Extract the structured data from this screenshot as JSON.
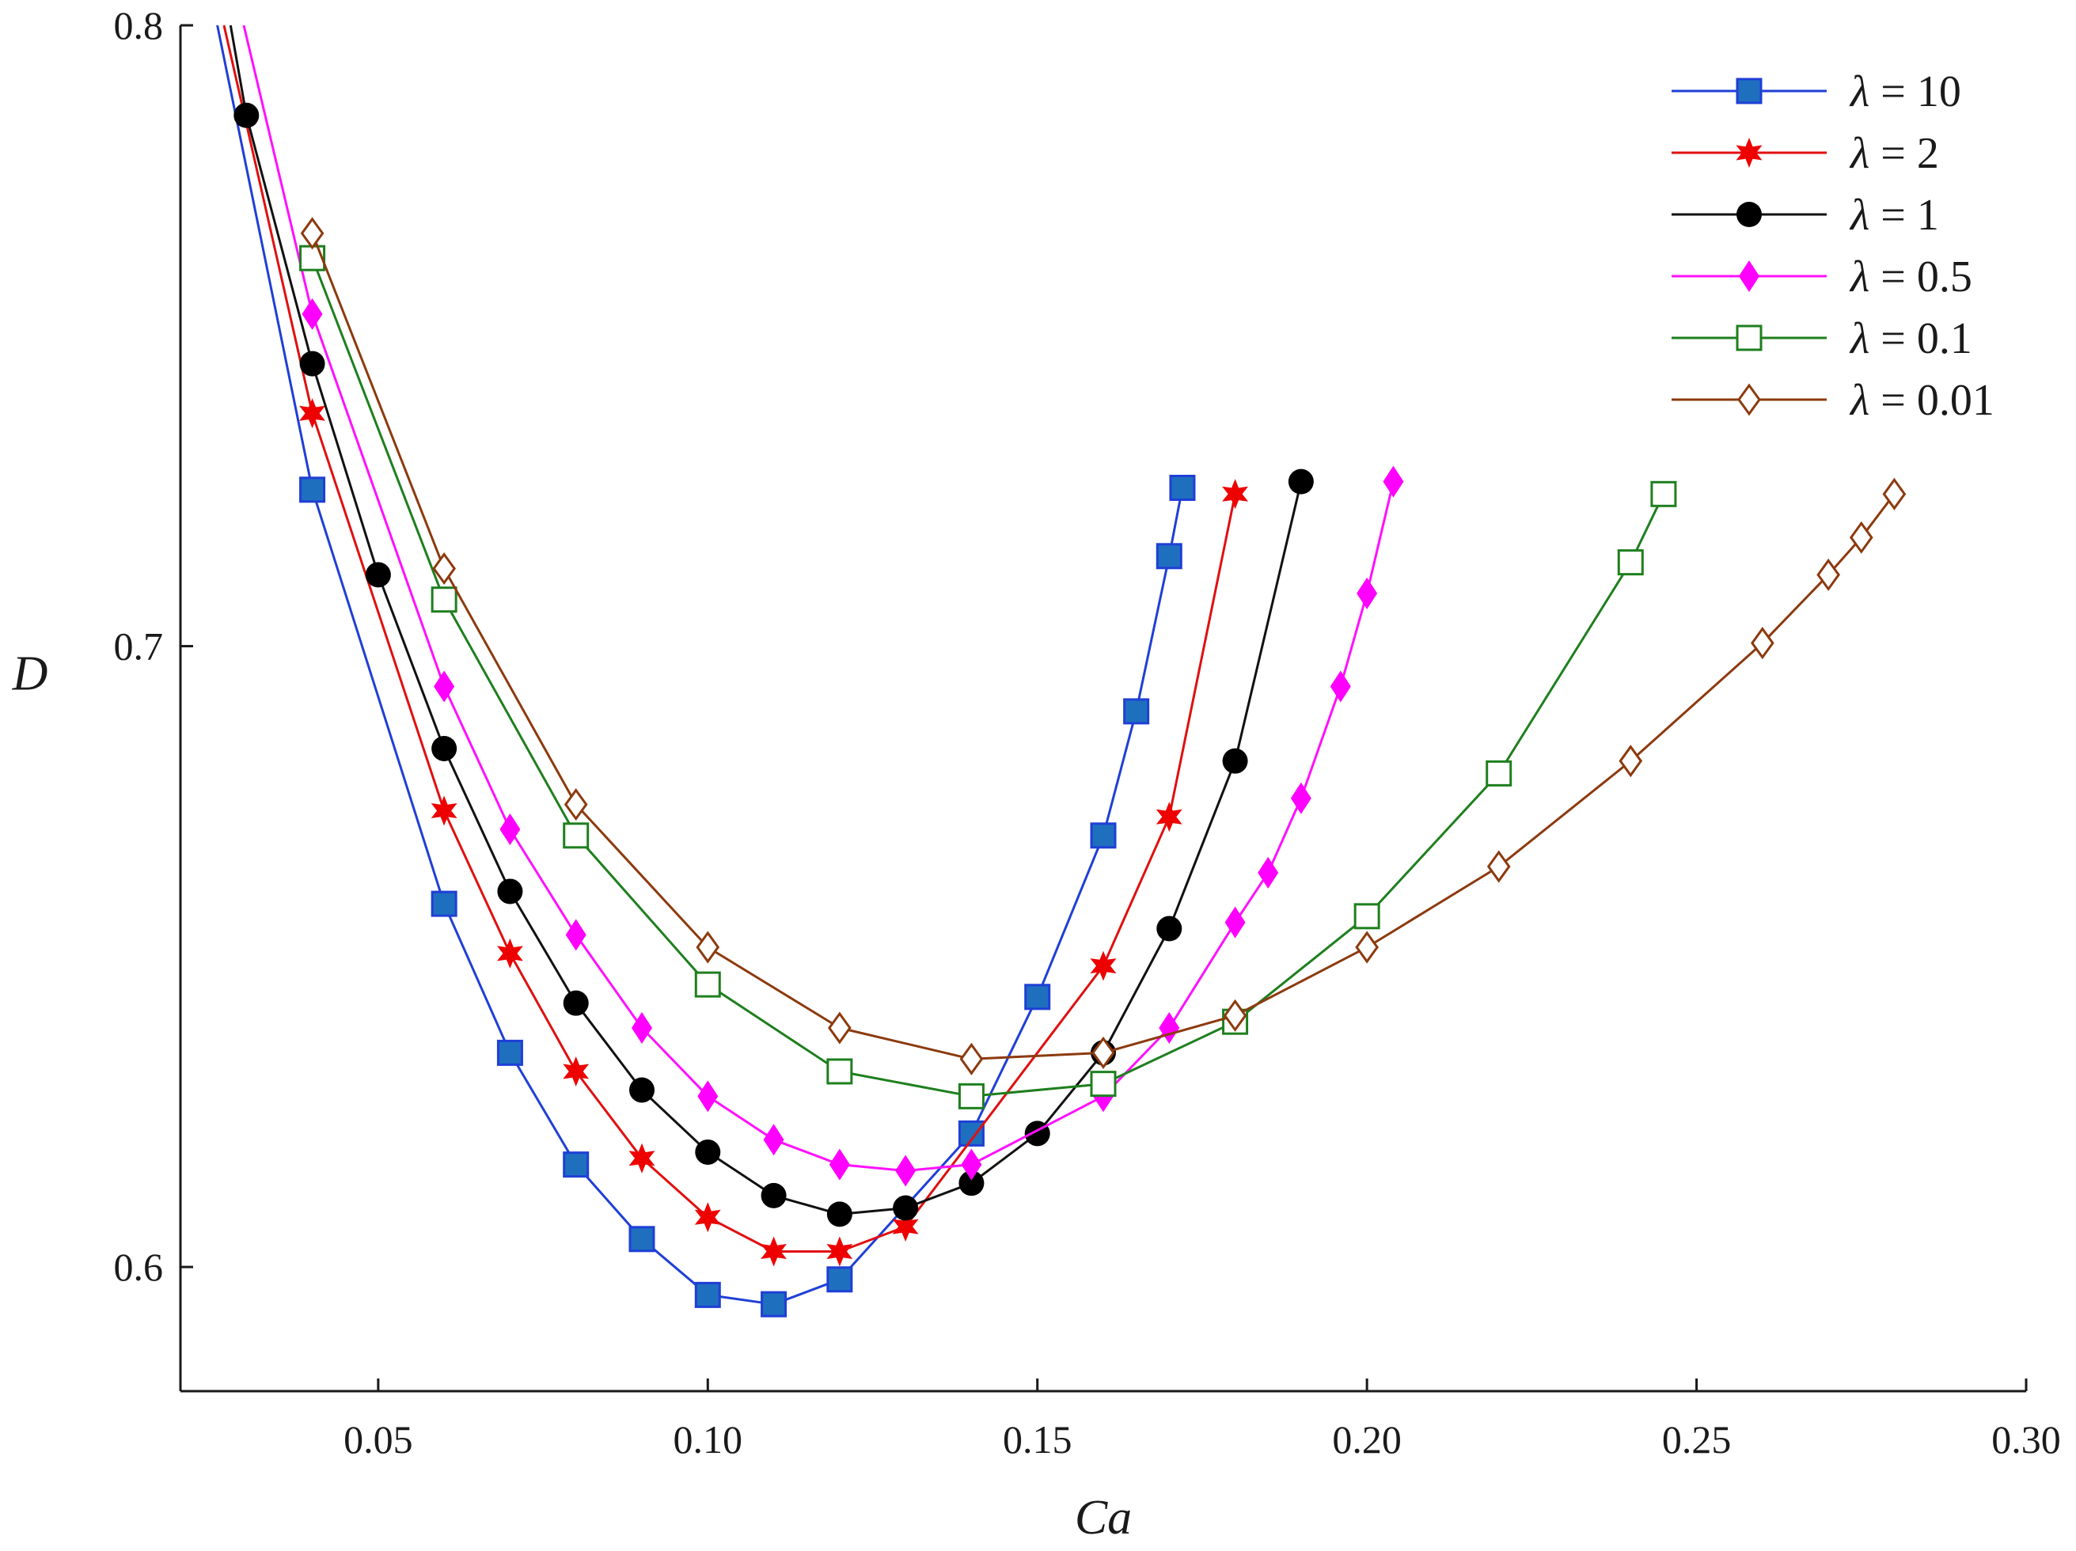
{
  "chart_data": {
    "type": "line",
    "xlabel": "Ca",
    "ylabel": "D",
    "xlim": [
      0.02,
      0.3
    ],
    "ylim": [
      0.58,
      0.8
    ],
    "xticks": [
      "0.05",
      "0.10",
      "0.15",
      "0.20",
      "0.25",
      "0.30"
    ],
    "yticks": [
      "0.6",
      "0.7",
      "0.8"
    ],
    "xtick_values": [
      0.05,
      0.1,
      0.15,
      0.2,
      0.25,
      0.3
    ],
    "ytick_values": [
      0.6,
      0.7,
      0.8
    ],
    "grid": false,
    "legend_position": "top-right",
    "series": [
      {
        "name": "λ = 10",
        "symbol": "λ",
        "value_text": "10",
        "color": "#1f3fd6",
        "marker": "square-filled",
        "marker_color": "#1f6fbf",
        "lead": [
          0.0256,
          0.8
        ],
        "x": [
          0.04,
          0.06,
          0.07,
          0.08,
          0.09,
          0.1,
          0.11,
          0.12,
          0.14,
          0.15,
          0.16,
          0.165,
          0.17,
          0.172
        ],
        "y": [
          0.7252,
          0.6585,
          0.6345,
          0.6165,
          0.6045,
          0.5955,
          0.594,
          0.598,
          0.6215,
          0.6435,
          0.6695,
          0.6895,
          0.7145,
          0.7255
        ]
      },
      {
        "name": "λ = 2",
        "symbol": "λ",
        "value_text": "2",
        "color": "#e01010",
        "marker": "star-filled",
        "marker_color": "#ee0000",
        "lead": [
          0.0266,
          0.8
        ],
        "x": [
          0.04,
          0.06,
          0.07,
          0.08,
          0.09,
          0.1,
          0.11,
          0.12,
          0.13,
          0.16,
          0.17,
          0.18
        ],
        "y": [
          0.7375,
          0.6735,
          0.6505,
          0.6315,
          0.6175,
          0.608,
          0.6025,
          0.6025,
          0.6065,
          0.6485,
          0.6725,
          0.7245
        ]
      },
      {
        "name": "λ = 1",
        "symbol": "λ",
        "value_text": "1",
        "color": "#111111",
        "marker": "circle-filled",
        "marker_color": "#000000",
        "lead": [
          0.0276,
          0.8
        ],
        "x": [
          0.03,
          0.04,
          0.05,
          0.06,
          0.07,
          0.08,
          0.09,
          0.1,
          0.11,
          0.12,
          0.13,
          0.14,
          0.15,
          0.16,
          0.17,
          0.18,
          0.19
        ],
        "y": [
          0.7855,
          0.7455,
          0.7115,
          0.6835,
          0.6605,
          0.6425,
          0.6285,
          0.6185,
          0.6115,
          0.6085,
          0.6095,
          0.6135,
          0.6215,
          0.6345,
          0.6545,
          0.6815,
          0.7265
        ]
      },
      {
        "name": "λ = 0.5",
        "symbol": "λ",
        "value_text": "0.5",
        "color": "#ff10ff",
        "marker": "diamond-filled",
        "marker_color": "#ff00ff",
        "lead": [
          0.0296,
          0.8
        ],
        "x": [
          0.04,
          0.06,
          0.07,
          0.08,
          0.09,
          0.1,
          0.11,
          0.12,
          0.13,
          0.14,
          0.16,
          0.17,
          0.18,
          0.185,
          0.19,
          0.196,
          0.2,
          0.204
        ],
        "y": [
          0.7535,
          0.6935,
          0.6705,
          0.6535,
          0.6385,
          0.6275,
          0.6205,
          0.6165,
          0.6155,
          0.6165,
          0.6275,
          0.6385,
          0.6555,
          0.6635,
          0.6755,
          0.6935,
          0.7085,
          0.7265
        ]
      },
      {
        "name": "λ = 0.1",
        "symbol": "λ",
        "value_text": "0.1",
        "color": "#1e7f1e",
        "marker": "square-open",
        "marker_color": "#1e7f1e",
        "x": [
          0.04,
          0.06,
          0.08,
          0.1,
          0.12,
          0.14,
          0.16,
          0.18,
          0.2,
          0.22,
          0.24,
          0.245
        ],
        "y": [
          0.7625,
          0.7075,
          0.6695,
          0.6455,
          0.6315,
          0.6275,
          0.6295,
          0.6395,
          0.6565,
          0.6795,
          0.7135,
          0.7245
        ]
      },
      {
        "name": "λ = 0.01",
        "symbol": "λ",
        "value_text": "0.01",
        "color": "#8c3a0e",
        "marker": "diamond-open",
        "marker_color": "#8c3a0e",
        "x": [
          0.04,
          0.06,
          0.08,
          0.1,
          0.12,
          0.14,
          0.16,
          0.18,
          0.2,
          0.22,
          0.24,
          0.26,
          0.27,
          0.275,
          0.28
        ],
        "y": [
          0.7665,
          0.7125,
          0.6745,
          0.6515,
          0.6385,
          0.6335,
          0.6345,
          0.6405,
          0.6515,
          0.6645,
          0.6815,
          0.7005,
          0.7115,
          0.7175,
          0.7245
        ]
      }
    ]
  }
}
